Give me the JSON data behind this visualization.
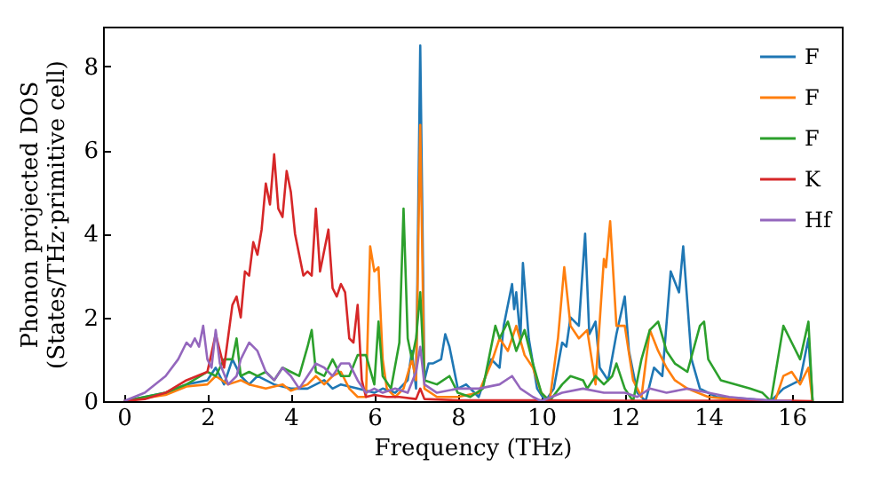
{
  "chart_data": {
    "type": "line",
    "xlabel": "Frequency (THz)",
    "ylabel": "Phonon projected DOS\n(States/THz·primitive cell)",
    "xlim": [
      -0.5,
      17.2
    ],
    "ylim": [
      0,
      8.95
    ],
    "xticks": [
      0,
      2,
      4,
      6,
      8,
      10,
      12,
      14,
      16
    ],
    "yticks": [
      0,
      2,
      4,
      6,
      8
    ],
    "legend": "top right",
    "line_style": "solid",
    "series": [
      {
        "name": "F",
        "color": "#1f77b4",
        "x": [
          0,
          1,
          1.5,
          2,
          2.2,
          2.4,
          2.6,
          2.8,
          3,
          3.2,
          3.4,
          3.6,
          4,
          4.4,
          4.8,
          5,
          5.2,
          5.6,
          6,
          6.2,
          6.5,
          6.8,
          6.9,
          7,
          7.1,
          7.2,
          7.3,
          7.4,
          7.6,
          7.7,
          7.8,
          8,
          8.2,
          8.5,
          8.8,
          9,
          9.1,
          9.2,
          9.3,
          9.35,
          9.4,
          9.5,
          9.56,
          9.7,
          9.9,
          10.1,
          10.3,
          10.5,
          10.6,
          10.7,
          10.8,
          10.9,
          11.05,
          11.15,
          11.3,
          11.4,
          11.6,
          11.8,
          12,
          12.1,
          12.3,
          12.5,
          12.7,
          12.9,
          13.1,
          13.3,
          13.4,
          13.6,
          13.8,
          14.2,
          15,
          15.5,
          15.8,
          16.2,
          16.4,
          16.5
        ],
        "values": [
          0,
          0.2,
          0.4,
          0.5,
          0.8,
          0.4,
          1,
          0.6,
          0.4,
          0.6,
          0.5,
          0.4,
          0.3,
          0.3,
          0.5,
          0.3,
          0.4,
          0.3,
          0.2,
          0.3,
          0.2,
          0.5,
          1.2,
          0.3,
          8.5,
          0.5,
          0.9,
          0.9,
          1,
          1.6,
          1.3,
          0.3,
          0.4,
          0.1,
          1,
          0.8,
          1.8,
          2.3,
          2.8,
          2.2,
          2.6,
          1.5,
          3.3,
          1.5,
          0.3,
          0,
          0.3,
          1.4,
          1.3,
          2,
          1.9,
          1.8,
          4,
          1.6,
          1.9,
          0.8,
          0.5,
          1.6,
          2.5,
          1.2,
          0.2,
          0,
          0.8,
          0.6,
          3.1,
          2.6,
          3.7,
          1,
          0.3,
          0.1,
          0.05,
          0,
          0.3,
          0.5,
          1.5,
          0
        ]
      },
      {
        "name": "F",
        "color": "#ff7f0e",
        "x": [
          0,
          1,
          1.5,
          2,
          2.2,
          2.5,
          2.8,
          3,
          3.4,
          3.8,
          4,
          4.4,
          4.6,
          4.8,
          5,
          5.2,
          5.4,
          5.6,
          5.8,
          5.9,
          6,
          6.1,
          6.2,
          6.3,
          6.5,
          6.7,
          6.9,
          7,
          7.1,
          7.2,
          7.5,
          8,
          8.5,
          8.8,
          9,
          9.2,
          9.4,
          9.6,
          9.8,
          10,
          10.2,
          10.4,
          10.55,
          10.7,
          10.9,
          11.1,
          11.3,
          11.5,
          11.55,
          11.65,
          11.8,
          12,
          12.2,
          12.4,
          12.6,
          12.8,
          13,
          13.2,
          13.5,
          14,
          15,
          15.6,
          15.8,
          16,
          16.2,
          16.4,
          16.5
        ],
        "values": [
          0,
          0.15,
          0.35,
          0.4,
          0.6,
          0.4,
          0.5,
          0.4,
          0.3,
          0.4,
          0.25,
          0.4,
          0.6,
          0.4,
          0.6,
          0.7,
          0.3,
          0.1,
          0.1,
          3.7,
          3.1,
          3.2,
          1,
          0.3,
          0.1,
          0.3,
          1,
          0.5,
          6.6,
          0.3,
          0.1,
          0.1,
          0.2,
          0.9,
          1.5,
          1.2,
          1.8,
          1.1,
          0.8,
          0.2,
          0,
          1.5,
          3.2,
          1.8,
          1.5,
          1.7,
          0.4,
          3.4,
          3.2,
          4.3,
          1.8,
          1.8,
          0.5,
          0.1,
          1.7,
          1.2,
          0.8,
          0.5,
          0.3,
          0.1,
          0,
          0,
          0.6,
          0.7,
          0.4,
          0.8,
          0
        ]
      },
      {
        "name": "F",
        "color": "#2ca02c",
        "x": [
          0,
          1,
          1.5,
          2,
          2.2,
          2.4,
          2.6,
          2.7,
          2.8,
          3,
          3.2,
          3.4,
          3.6,
          3.8,
          4,
          4.2,
          4.4,
          4.5,
          4.6,
          4.8,
          5,
          5.2,
          5.4,
          5.6,
          5.8,
          6,
          6.1,
          6.2,
          6.4,
          6.6,
          6.7,
          6.8,
          6.9,
          7,
          7.1,
          7.2,
          7.5,
          7.8,
          8,
          8.3,
          8.6,
          8.9,
          9,
          9.2,
          9.4,
          9.6,
          9.8,
          10,
          10.2,
          10.5,
          10.7,
          11,
          11.1,
          11.3,
          11.5,
          11.7,
          11.8,
          12,
          12.2,
          12.4,
          12.6,
          12.8,
          13,
          13.2,
          13.5,
          13.8,
          13.9,
          14,
          14.3,
          15,
          15.3,
          15.5,
          15.8,
          16,
          16.2,
          16.4,
          16.5
        ],
        "values": [
          0,
          0.2,
          0.4,
          0.7,
          0.6,
          1,
          1,
          1.5,
          0.6,
          0.7,
          0.6,
          0.7,
          0.5,
          0.8,
          0.7,
          0.6,
          1.3,
          1.7,
          0.7,
          0.6,
          1,
          0.6,
          0.6,
          1.1,
          1.1,
          0.4,
          1.9,
          0.6,
          0.3,
          1.4,
          4.6,
          1.5,
          1,
          1.5,
          2.6,
          0.5,
          0.4,
          0.6,
          0.2,
          0.1,
          0.3,
          1.8,
          1.5,
          1.9,
          1.2,
          1.7,
          0.9,
          0.2,
          0,
          0.4,
          0.6,
          0.5,
          0.3,
          0.6,
          0.4,
          0.6,
          0.9,
          0.3,
          0,
          1,
          1.7,
          1.9,
          1.2,
          0.9,
          0.7,
          1.8,
          1.9,
          1,
          0.5,
          0.3,
          0.2,
          0,
          1.8,
          1.4,
          1,
          1.9,
          0
        ]
      },
      {
        "name": "K",
        "color": "#d62728",
        "x": [
          0,
          0.5,
          1,
          1.5,
          2,
          2.2,
          2.4,
          2.6,
          2.7,
          2.8,
          2.9,
          3,
          3.1,
          3.2,
          3.3,
          3.4,
          3.5,
          3.6,
          3.7,
          3.8,
          3.9,
          4,
          4.1,
          4.2,
          4.3,
          4.4,
          4.5,
          4.6,
          4.7,
          4.8,
          4.9,
          5,
          5.1,
          5.2,
          5.3,
          5.4,
          5.5,
          5.6,
          5.7,
          5.8,
          6,
          6.3,
          6.6,
          7,
          7.1,
          7.2,
          8,
          10,
          12,
          14,
          16,
          16.5
        ],
        "values": [
          0,
          0.05,
          0.2,
          0.5,
          0.7,
          1.6,
          0.8,
          2.3,
          2.5,
          2,
          3.1,
          3,
          3.8,
          3.5,
          4.1,
          5.2,
          4.7,
          5.9,
          4.6,
          4.4,
          5.5,
          5,
          4,
          3.5,
          3,
          3.1,
          3,
          4.6,
          3.1,
          3.6,
          4.1,
          2.7,
          2.5,
          2.8,
          2.6,
          1.5,
          1.4,
          2.3,
          0.5,
          0.1,
          0.15,
          0.1,
          0.1,
          0.05,
          0.3,
          0.05,
          0.02,
          0.02,
          0.01,
          0.01,
          0.01,
          0
        ]
      },
      {
        "name": "Hf",
        "color": "#9467bd",
        "x": [
          0,
          0.5,
          1,
          1.3,
          1.5,
          1.6,
          1.7,
          1.8,
          1.9,
          2,
          2.1,
          2.2,
          2.3,
          2.5,
          2.7,
          2.8,
          3,
          3.1,
          3.2,
          3.4,
          3.6,
          3.8,
          4,
          4.2,
          4.4,
          4.6,
          4.8,
          5,
          5.2,
          5.4,
          5.6,
          5.8,
          6,
          6.2,
          6.5,
          6.8,
          7,
          7.1,
          7.2,
          7.5,
          8,
          8.5,
          9,
          9.3,
          9.5,
          9.8,
          10,
          10.5,
          11,
          11.5,
          12,
          12.3,
          12.6,
          13,
          13.5,
          14,
          14.5,
          15,
          15.5,
          16
        ],
        "values": [
          0,
          0.2,
          0.6,
          1,
          1.4,
          1.3,
          1.5,
          1.3,
          1.8,
          1,
          0.8,
          1.7,
          0.9,
          0.4,
          0.6,
          1,
          1.4,
          1.3,
          1.2,
          0.7,
          0.5,
          0.8,
          0.6,
          0.3,
          0.6,
          0.9,
          0.8,
          0.6,
          0.9,
          0.9,
          0.5,
          0.2,
          0.3,
          0.2,
          0.3,
          0.2,
          0.7,
          1.3,
          0.4,
          0.2,
          0.3,
          0.3,
          0.4,
          0.6,
          0.3,
          0.1,
          0,
          0.2,
          0.3,
          0.2,
          0.2,
          0.1,
          0.3,
          0.2,
          0.3,
          0.2,
          0.1,
          0.05,
          0.02,
          0
        ]
      }
    ]
  }
}
